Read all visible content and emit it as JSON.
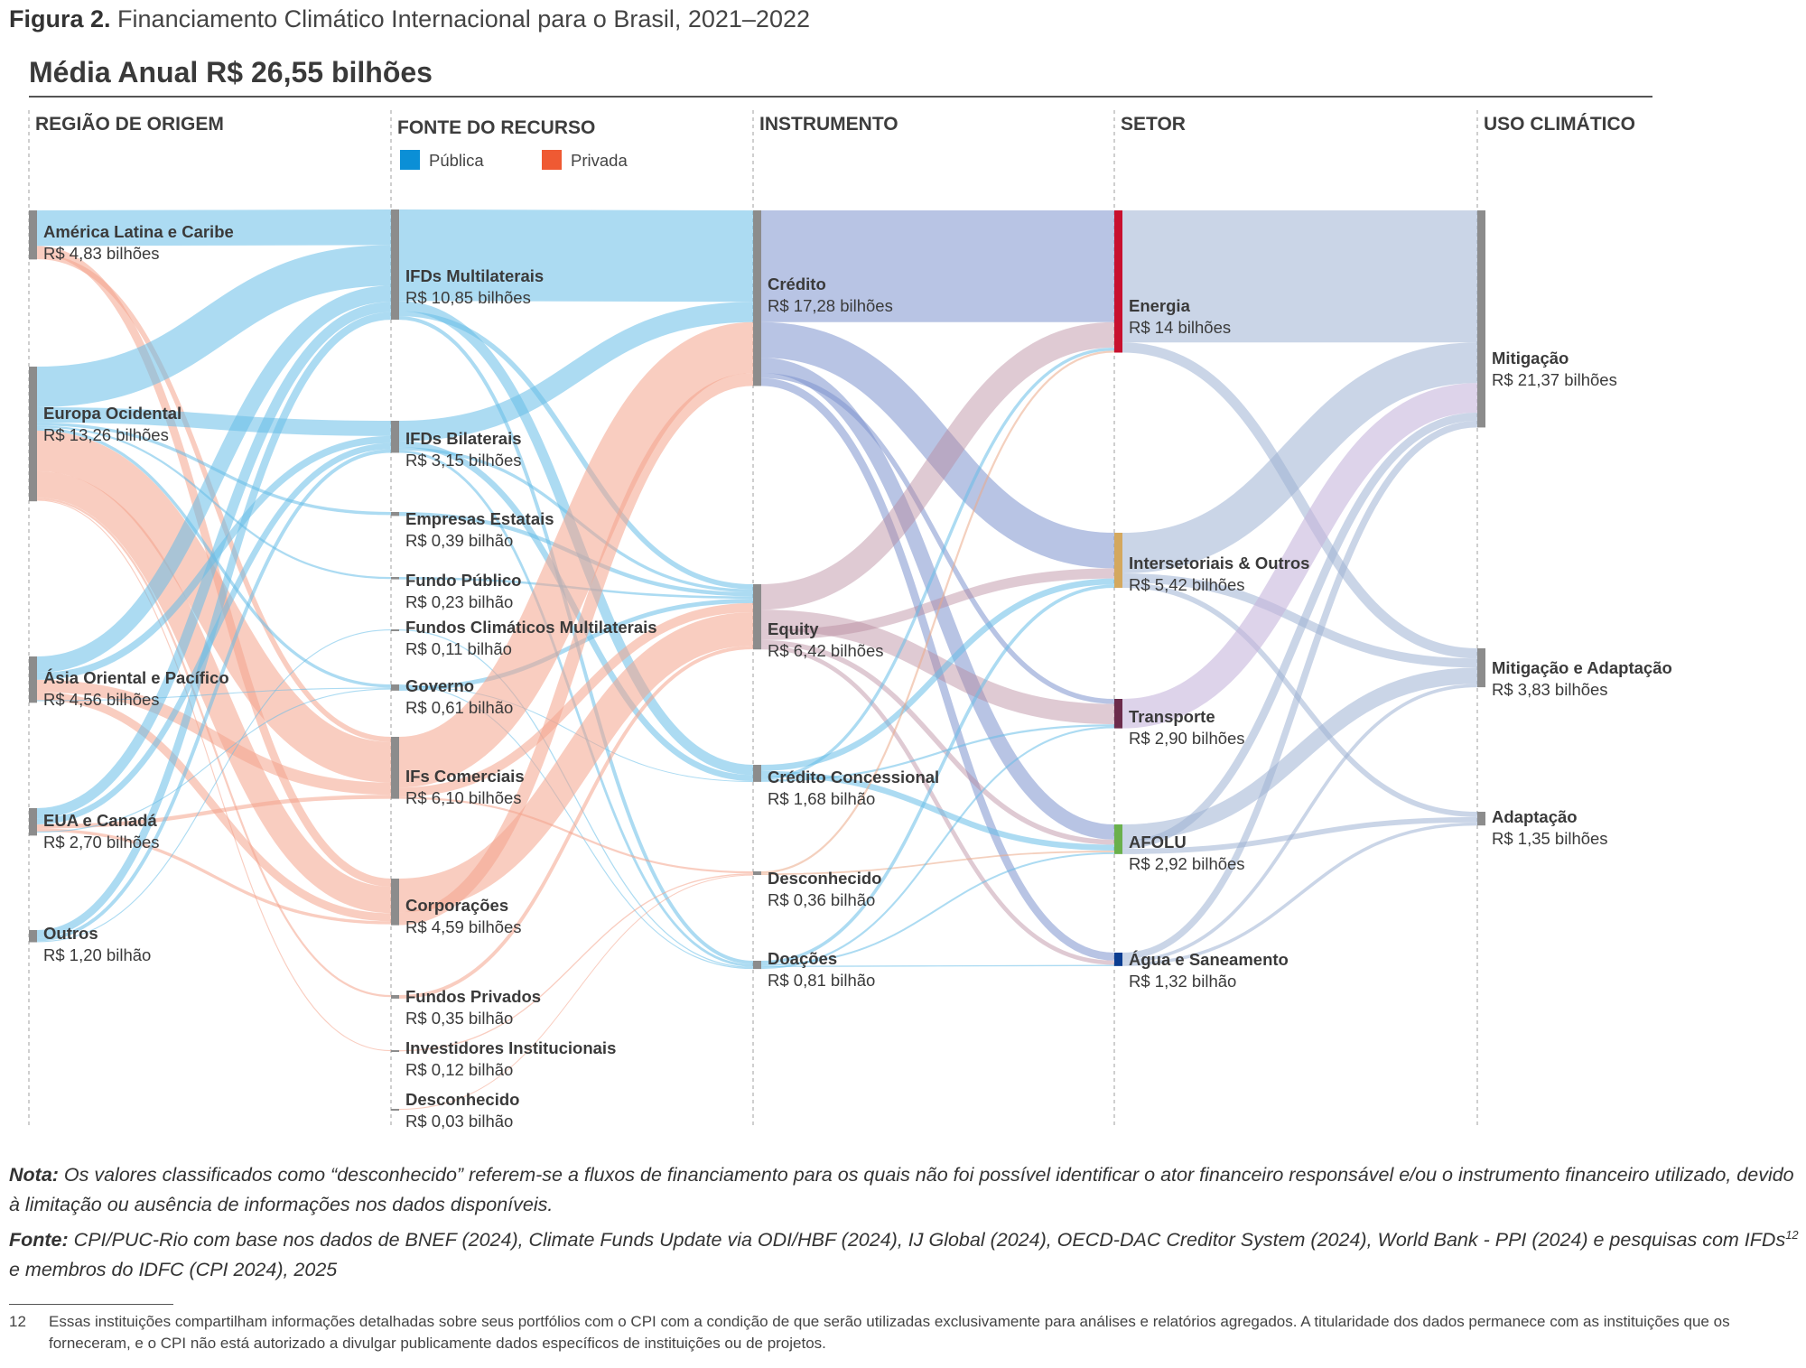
{
  "figure": {
    "label": "Figura 2.",
    "title": "Financiamento Climático Internacional para o Brasil, 2021–2022",
    "subtitle": "Média Anual R$ 26,55 bilhões"
  },
  "legend": {
    "public_label": "Pública",
    "private_label": "Privada",
    "public_color": "#0b8fd6",
    "private_color": "#ef5a33"
  },
  "chart_data": {
    "type": "sankey",
    "title": "Média Anual R$ 26,55 bilhões",
    "unit": "R$ bilhões",
    "columns": [
      "REGIÃO DE ORIGEM",
      "FONTE DO RECURSO",
      "INSTRUMENTO",
      "SETOR",
      "USO CLIMÁTICO"
    ],
    "nodes": [
      {
        "id": "alc",
        "column": 0,
        "name": "América Latina e Caribe",
        "value_label": "R$ 4,83 bilhões",
        "value": 4.83
      },
      {
        "id": "eo",
        "column": 0,
        "name": "Europa Ocidental",
        "value_label": "R$ 13,26 bilhões",
        "value": 13.26
      },
      {
        "id": "aop",
        "column": 0,
        "name": "Ásia Oriental e Pacífico",
        "value_label": "R$ 4,56 bilhões",
        "value": 4.56
      },
      {
        "id": "euc",
        "column": 0,
        "name": "EUA e Canadá",
        "value_label": "R$ 2,70 bilhões",
        "value": 2.7
      },
      {
        "id": "out",
        "column": 0,
        "name": "Outros",
        "value_label": "R$ 1,20 bilhão",
        "value": 1.2
      },
      {
        "id": "ifdm",
        "column": 1,
        "name": "IFDs Multilaterais",
        "value_label": "R$ 10,85 bilhões",
        "value": 10.85,
        "source_type": "public"
      },
      {
        "id": "ifdb",
        "column": 1,
        "name": "IFDs Bilaterais",
        "value_label": "R$ 3,15 bilhões",
        "value": 3.15,
        "source_type": "public"
      },
      {
        "id": "empe",
        "column": 1,
        "name": "Empresas Estatais",
        "value_label": "R$ 0,39 bilhão",
        "value": 0.39,
        "source_type": "public"
      },
      {
        "id": "fpub",
        "column": 1,
        "name": "Fundo Público",
        "value_label": "R$ 0,23 bilhão",
        "value": 0.23,
        "source_type": "public"
      },
      {
        "id": "fcm",
        "column": 1,
        "name": "Fundos Climáticos Multilaterais",
        "value_label": "R$ 0,11 bilhão",
        "value": 0.11,
        "source_type": "public"
      },
      {
        "id": "gov",
        "column": 1,
        "name": "Governo",
        "value_label": "R$ 0,61 bilhão",
        "value": 0.61,
        "source_type": "public"
      },
      {
        "id": "ifc",
        "column": 1,
        "name": "IFs Comerciais",
        "value_label": "R$ 6,10 bilhões",
        "value": 6.1,
        "source_type": "private"
      },
      {
        "id": "corp",
        "column": 1,
        "name": "Corporações",
        "value_label": "R$ 4,59 bilhões",
        "value": 4.59,
        "source_type": "private"
      },
      {
        "id": "fpriv",
        "column": 1,
        "name": "Fundos Privados",
        "value_label": "R$ 0,35 bilhão",
        "value": 0.35,
        "source_type": "private"
      },
      {
        "id": "invi",
        "column": 1,
        "name": "Investidores Institucionais",
        "value_label": "R$ 0,12 bilhão",
        "value": 0.12,
        "source_type": "private"
      },
      {
        "id": "desc1",
        "column": 1,
        "name": "Desconhecido",
        "value_label": "R$ 0,03 bilhão",
        "value": 0.03,
        "source_type": "private"
      },
      {
        "id": "cred",
        "column": 2,
        "name": "Crédito",
        "value_label": "R$ 17,28 bilhões",
        "value": 17.28
      },
      {
        "id": "eq",
        "column": 2,
        "name": "Equity",
        "value_label": "R$ 6,42 bilhões",
        "value": 6.42
      },
      {
        "id": "credc",
        "column": 2,
        "name": "Crédito Concessional",
        "value_label": "R$ 1,68 bilhão",
        "value": 1.68
      },
      {
        "id": "desc2",
        "column": 2,
        "name": "Desconhecido",
        "value_label": "R$ 0,36 bilhão",
        "value": 0.36
      },
      {
        "id": "doa",
        "column": 2,
        "name": "Doações",
        "value_label": "R$ 0,81 bilhão",
        "value": 0.81
      },
      {
        "id": "ene",
        "column": 3,
        "name": "Energia",
        "value_label": "R$ 14 bilhões",
        "value": 14.0,
        "color": "#c8102e"
      },
      {
        "id": "inter",
        "column": 3,
        "name": "Intersetoriais & Outros",
        "value_label": "R$ 5,42 bilhões",
        "value": 5.42,
        "color": "#d4a85e"
      },
      {
        "id": "trans",
        "column": 3,
        "name": "Transporte",
        "value_label": "R$ 2,90 bilhões",
        "value": 2.9,
        "color": "#6b2b4b"
      },
      {
        "id": "afolu",
        "column": 3,
        "name": "AFOLU",
        "value_label": "R$ 2,92 bilhões",
        "value": 2.92,
        "color": "#6ab04c"
      },
      {
        "id": "agua",
        "column": 3,
        "name": "Água e Saneamento",
        "value_label": "R$ 1,32 bilhão",
        "value": 1.32,
        "color": "#0b3d91"
      },
      {
        "id": "mit",
        "column": 4,
        "name": "Mitigação",
        "value_label": "R$ 21,37 bilhões",
        "value": 21.37
      },
      {
        "id": "mitad",
        "column": 4,
        "name": "Mitigação e Adaptação",
        "value_label": "R$ 3,83 bilhões",
        "value": 3.83
      },
      {
        "id": "adap",
        "column": 4,
        "name": "Adaptação",
        "value_label": "R$ 1,35 bilhões",
        "value": 1.35
      }
    ],
    "flows": [
      {
        "source": "alc",
        "target": "ifdm",
        "value": 3.5,
        "type": "public"
      },
      {
        "source": "alc",
        "target": "corp",
        "value": 0.8,
        "type": "private"
      },
      {
        "source": "alc",
        "target": "ifc",
        "value": 0.5,
        "type": "private"
      },
      {
        "source": "eo",
        "target": "ifdm",
        "value": 4.0,
        "type": "public"
      },
      {
        "source": "eo",
        "target": "ifdb",
        "value": 1.5,
        "type": "public"
      },
      {
        "source": "eo",
        "target": "empe",
        "value": 0.3,
        "type": "public"
      },
      {
        "source": "eo",
        "target": "fpub",
        "value": 0.2,
        "type": "public"
      },
      {
        "source": "eo",
        "target": "gov",
        "value": 0.3,
        "type": "public"
      },
      {
        "source": "eo",
        "target": "ifc",
        "value": 4.0,
        "type": "private"
      },
      {
        "source": "eo",
        "target": "corp",
        "value": 2.6,
        "type": "private"
      },
      {
        "source": "eo",
        "target": "fpriv",
        "value": 0.2,
        "type": "private"
      },
      {
        "source": "eo",
        "target": "invi",
        "value": 0.1,
        "type": "private"
      },
      {
        "source": "aop",
        "target": "ifdm",
        "value": 1.6,
        "type": "public"
      },
      {
        "source": "aop",
        "target": "ifdb",
        "value": 0.7,
        "type": "public"
      },
      {
        "source": "aop",
        "target": "ifc",
        "value": 1.2,
        "type": "private"
      },
      {
        "source": "aop",
        "target": "corp",
        "value": 0.8,
        "type": "private"
      },
      {
        "source": "aop",
        "target": "gov",
        "value": 0.1,
        "type": "public"
      },
      {
        "source": "euc",
        "target": "ifdm",
        "value": 1.0,
        "type": "public"
      },
      {
        "source": "euc",
        "target": "ifdb",
        "value": 0.6,
        "type": "public"
      },
      {
        "source": "euc",
        "target": "ifc",
        "value": 0.4,
        "type": "private"
      },
      {
        "source": "euc",
        "target": "corp",
        "value": 0.3,
        "type": "private"
      },
      {
        "source": "euc",
        "target": "gov",
        "value": 0.1,
        "type": "public"
      },
      {
        "source": "out",
        "target": "ifdm",
        "value": 0.75,
        "type": "public"
      },
      {
        "source": "out",
        "target": "ifdb",
        "value": 0.35,
        "type": "public"
      },
      {
        "source": "out",
        "target": "fcm",
        "value": 0.1,
        "type": "public"
      },
      {
        "source": "ifdm",
        "target": "cred",
        "value": 9.0,
        "type": "public"
      },
      {
        "source": "ifdm",
        "target": "credc",
        "value": 1.0,
        "type": "public"
      },
      {
        "source": "ifdm",
        "target": "eq",
        "value": 0.5,
        "type": "public"
      },
      {
        "source": "ifdm",
        "target": "doa",
        "value": 0.35,
        "type": "public"
      },
      {
        "source": "ifdb",
        "target": "cred",
        "value": 2.0,
        "type": "public"
      },
      {
        "source": "ifdb",
        "target": "credc",
        "value": 0.6,
        "type": "public"
      },
      {
        "source": "ifdb",
        "target": "eq",
        "value": 0.3,
        "type": "public"
      },
      {
        "source": "ifdb",
        "target": "doa",
        "value": 0.25,
        "type": "public"
      },
      {
        "source": "empe",
        "target": "eq",
        "value": 0.39,
        "type": "public"
      },
      {
        "source": "fpub",
        "target": "eq",
        "value": 0.23,
        "type": "public"
      },
      {
        "source": "fcm",
        "target": "doa",
        "value": 0.11,
        "type": "public"
      },
      {
        "source": "gov",
        "target": "doa",
        "value": 0.1,
        "type": "public"
      },
      {
        "source": "gov",
        "target": "credc",
        "value": 0.08,
        "type": "public"
      },
      {
        "source": "gov",
        "target": "eq",
        "value": 0.43,
        "type": "public"
      },
      {
        "source": "ifc",
        "target": "cred",
        "value": 5.0,
        "type": "private"
      },
      {
        "source": "ifc",
        "target": "eq",
        "value": 0.9,
        "type": "private"
      },
      {
        "source": "ifc",
        "target": "desc2",
        "value": 0.2,
        "type": "private"
      },
      {
        "source": "corp",
        "target": "eq",
        "value": 3.3,
        "type": "private"
      },
      {
        "source": "corp",
        "target": "cred",
        "value": 1.28,
        "type": "private"
      },
      {
        "source": "fpriv",
        "target": "eq",
        "value": 0.35,
        "type": "private"
      },
      {
        "source": "invi",
        "target": "desc2",
        "value": 0.12,
        "type": "private"
      },
      {
        "source": "desc1",
        "target": "desc2",
        "value": 0.03,
        "type": "private"
      },
      {
        "source": "cred",
        "target": "ene",
        "value": 11.0
      },
      {
        "source": "cred",
        "target": "inter",
        "value": 3.5
      },
      {
        "source": "cred",
        "target": "afolu",
        "value": 1.5
      },
      {
        "source": "cred",
        "target": "trans",
        "value": 0.5
      },
      {
        "source": "cred",
        "target": "agua",
        "value": 0.78
      },
      {
        "source": "eq",
        "target": "ene",
        "value": 2.5
      },
      {
        "source": "eq",
        "target": "trans",
        "value": 2.0
      },
      {
        "source": "eq",
        "target": "inter",
        "value": 1.0
      },
      {
        "source": "eq",
        "target": "afolu",
        "value": 0.5
      },
      {
        "source": "eq",
        "target": "agua",
        "value": 0.42
      },
      {
        "source": "credc",
        "target": "inter",
        "value": 0.6
      },
      {
        "source": "credc",
        "target": "afolu",
        "value": 0.58
      },
      {
        "source": "credc",
        "target": "ene",
        "value": 0.3
      },
      {
        "source": "credc",
        "target": "trans",
        "value": 0.2
      },
      {
        "source": "desc2",
        "target": "ene",
        "value": 0.2
      },
      {
        "source": "desc2",
        "target": "afolu",
        "value": 0.16
      },
      {
        "source": "doa",
        "target": "inter",
        "value": 0.32
      },
      {
        "source": "doa",
        "target": "afolu",
        "value": 0.18
      },
      {
        "source": "doa",
        "target": "agua",
        "value": 0.12
      },
      {
        "source": "doa",
        "target": "trans",
        "value": 0.19
      },
      {
        "source": "ene",
        "target": "mit",
        "value": 13.0
      },
      {
        "source": "ene",
        "target": "mitad",
        "value": 1.0
      },
      {
        "source": "inter",
        "target": "mit",
        "value": 4.0
      },
      {
        "source": "inter",
        "target": "mitad",
        "value": 0.9
      },
      {
        "source": "inter",
        "target": "adap",
        "value": 0.52
      },
      {
        "source": "trans",
        "target": "mit",
        "value": 2.9
      },
      {
        "source": "afolu",
        "target": "mitad",
        "value": 1.6
      },
      {
        "source": "afolu",
        "target": "mit",
        "value": 0.8
      },
      {
        "source": "afolu",
        "target": "adap",
        "value": 0.52
      },
      {
        "source": "agua",
        "target": "mit",
        "value": 0.67
      },
      {
        "source": "agua",
        "target": "mitad",
        "value": 0.33
      },
      {
        "source": "agua",
        "target": "adap",
        "value": 0.32
      }
    ]
  },
  "notes": {
    "nota_label": "Nota:",
    "nota_text": "Os valores classificados como “desconhecido” referem-se a fluxos de financiamento para os quais não foi possível identificar o ator financeiro responsável e/ou o instrumento financeiro utilizado, devido à limitação ou ausência de informações nos dados disponíveis.",
    "fonte_label": "Fonte:",
    "fonte_text_1": "CPI/PUC-Rio com base nos dados de BNEF (2024), Climate Funds Update via ODI/HBF (2024), IJ Global (2024), OECD-DAC Creditor System (2024), World Bank - PPI (2024) e pesquisas com IFDs",
    "fonte_sup": "12",
    "fonte_text_2": " e membros do IDFC (CPI 2024), 2025"
  },
  "footnote": {
    "number": "12",
    "text": "Essas instituições compartilham informações detalhadas sobre seus portfólios com o CPI com a condição de que serão utilizadas exclusivamente para análises e relatórios agregados. A titularidade dos dados permanece com as instituições que os forneceram, e o CPI não está autorizado a divulgar publicamente dados específicos de instituições ou de projetos."
  }
}
